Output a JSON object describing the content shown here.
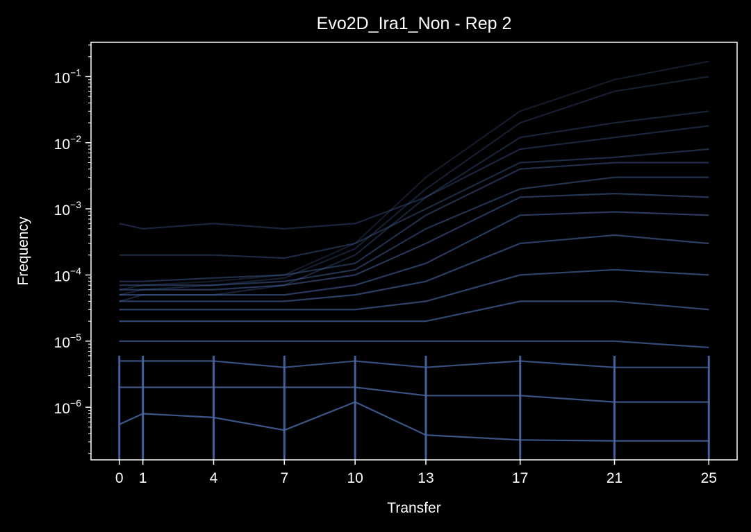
{
  "chart_data": {
    "type": "line",
    "title": "Evo2D_Ira1_Non - Rep 2",
    "xlabel": "Transfer",
    "ylabel": "Frequency",
    "x": [
      0,
      1,
      4,
      7,
      10,
      13,
      17,
      21,
      25
    ],
    "x_ticks": [
      "0",
      "1",
      "4",
      "7",
      "10",
      "13",
      "17",
      "21",
      "25"
    ],
    "y_scale": "log",
    "ylim": [
      1.6e-07,
      0.33
    ],
    "y_ticks": [
      {
        "base": "10",
        "exp": "−1",
        "value": 0.1
      },
      {
        "base": "10",
        "exp": "−2",
        "value": 0.01
      },
      {
        "base": "10",
        "exp": "−3",
        "value": 0.001
      },
      {
        "base": "10",
        "exp": "−4",
        "value": 0.0001
      },
      {
        "base": "10",
        "exp": "−5",
        "value": 1e-05
      },
      {
        "base": "10",
        "exp": "−6",
        "value": 1e-06
      }
    ],
    "colors": {
      "background": "#000000",
      "line": "#4a6aa8",
      "axes": "#ffffff"
    },
    "grid": false,
    "series": [
      {
        "values": [
          6e-05,
          7e-05,
          8e-05,
          0.0001,
          0.0003,
          0.003,
          0.03,
          0.09,
          0.17
        ]
      },
      {
        "values": [
          5e-05,
          6e-05,
          7e-05,
          9e-05,
          0.00025,
          0.002,
          0.02,
          0.06,
          0.1
        ]
      },
      {
        "values": [
          4e-05,
          5e-05,
          5e-05,
          7e-05,
          0.0002,
          0.0015,
          0.012,
          0.02,
          0.03
        ]
      },
      {
        "values": [
          0.0006,
          0.0005,
          0.0006,
          0.0005,
          0.0006,
          0.0015,
          0.008,
          0.012,
          0.018
        ]
      },
      {
        "values": [
          0.0002,
          0.0002,
          0.0002,
          0.00018,
          0.0003,
          0.001,
          0.005,
          0.006,
          0.008
        ]
      },
      {
        "values": [
          8e-05,
          8e-05,
          9e-05,
          0.0001,
          0.00015,
          0.0008,
          0.004,
          0.005,
          0.005
        ]
      },
      {
        "values": [
          7e-05,
          7e-05,
          7e-05,
          8e-05,
          0.00012,
          0.0005,
          0.002,
          0.003,
          0.003
        ]
      },
      {
        "values": [
          6e-05,
          6e-05,
          6e-05,
          7e-05,
          0.0001,
          0.0003,
          0.0015,
          0.0017,
          0.0015
        ]
      },
      {
        "values": [
          5e-05,
          5e-05,
          5e-05,
          5e-05,
          7e-05,
          0.00015,
          0.0008,
          0.0009,
          0.0008
        ]
      },
      {
        "values": [
          4e-05,
          4e-05,
          4e-05,
          4e-05,
          5e-05,
          8e-05,
          0.0003,
          0.0004,
          0.0003
        ]
      },
      {
        "values": [
          3e-05,
          3e-05,
          3e-05,
          3e-05,
          3e-05,
          4e-05,
          0.0001,
          0.00012,
          0.0001
        ]
      },
      {
        "values": [
          2e-05,
          2e-05,
          2e-05,
          2e-05,
          2e-05,
          2e-05,
          4e-05,
          4e-05,
          3e-05
        ]
      },
      {
        "values": [
          1e-05,
          1e-05,
          1e-05,
          1e-05,
          1e-05,
          1e-05,
          1e-05,
          1e-05,
          8e-06
        ]
      },
      {
        "values": [
          5e-06,
          5e-06,
          5e-06,
          4e-06,
          5e-06,
          4e-06,
          5e-06,
          4e-06,
          4e-06
        ]
      },
      {
        "values": [
          2e-06,
          2e-06,
          2e-06,
          2e-06,
          2e-06,
          1.5e-06,
          1.5e-06,
          1.2e-06,
          1.2e-06
        ]
      },
      {
        "values": [
          5.5e-07,
          8e-07,
          7e-07,
          4.5e-07,
          1.2e-06,
          3.8e-07,
          3.2e-07,
          3.1e-07,
          3.1e-07
        ]
      }
    ]
  }
}
